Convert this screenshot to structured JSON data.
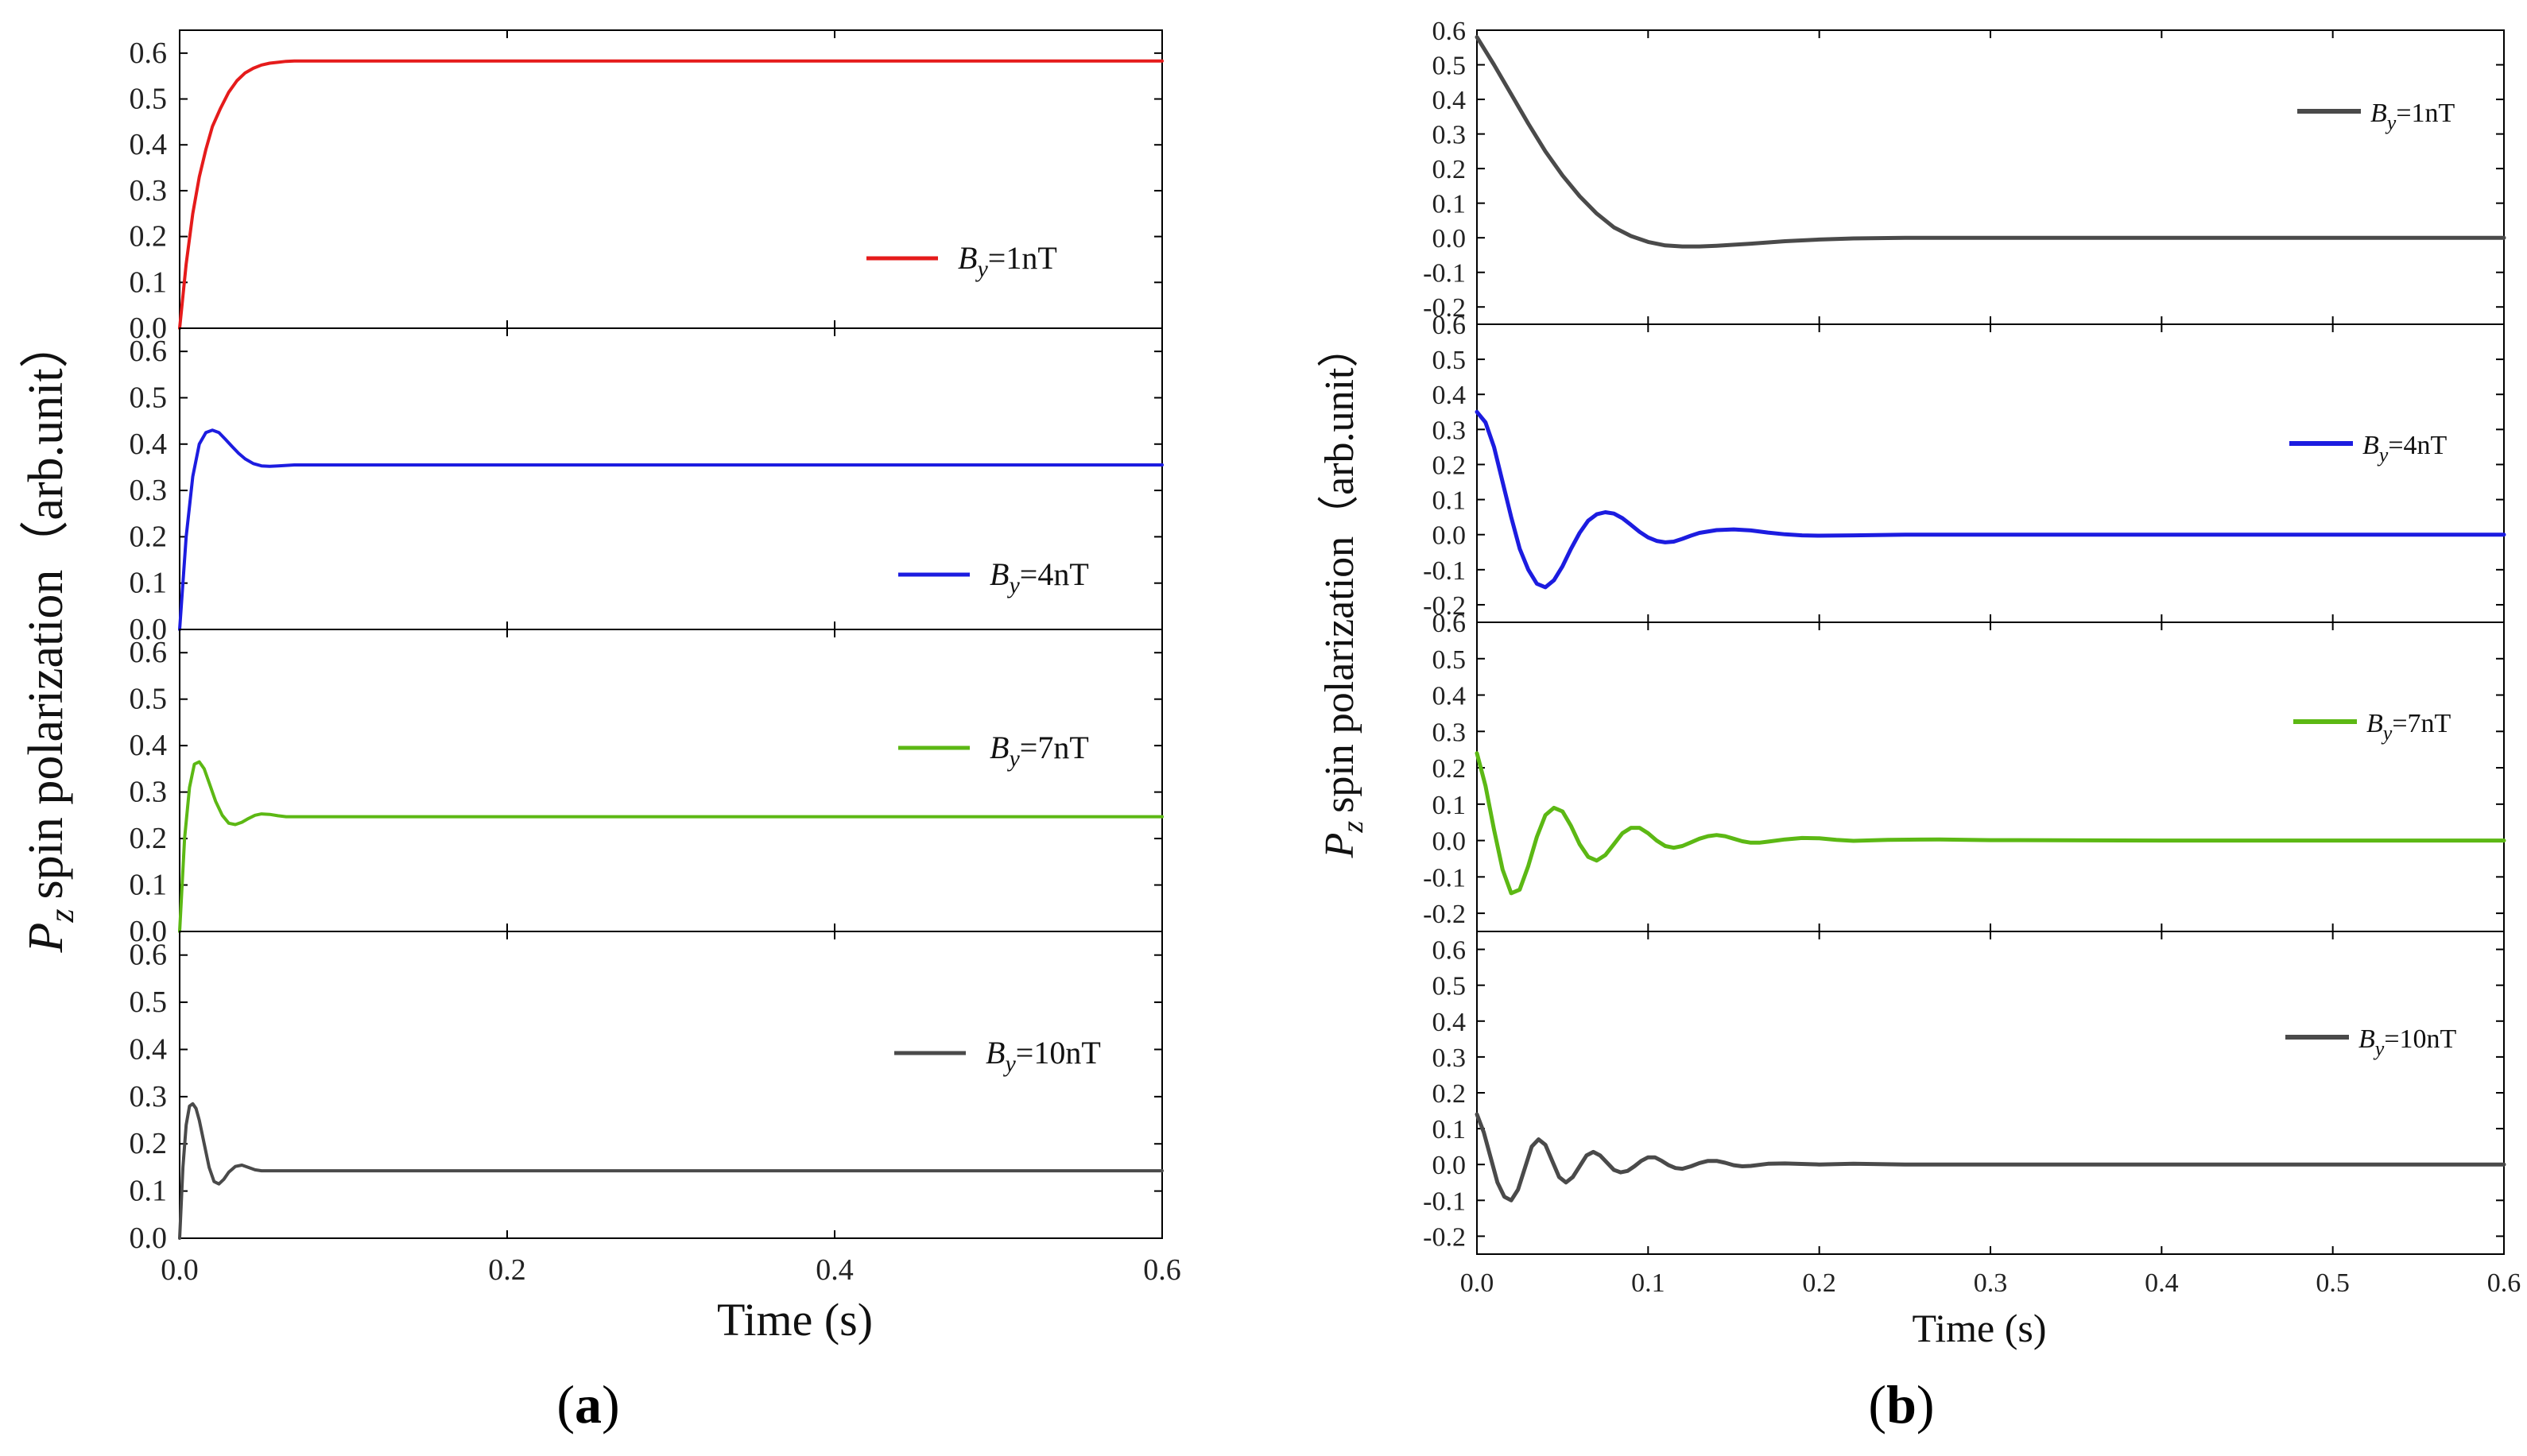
{
  "chart_data": [
    {
      "type": "line",
      "panel_label": "a",
      "xlabel": "Time (s)",
      "ylabel": "spin polarization（arb.unit）",
      "ylabel_symbol": "P",
      "ylabel_subscript": "z",
      "xlim": [
        0,
        0.6
      ],
      "xticks": [
        "0.0",
        "0.2",
        "0.4",
        "0.6"
      ],
      "subplots": [
        {
          "legend": "By=1nT",
          "legend_symbol": "B",
          "legend_sub": "y",
          "legend_tail": "=1nT",
          "color": "#e51b1b",
          "ylim": [
            0,
            0.65
          ],
          "yticks": [
            "0.0",
            "0.1",
            "0.2",
            "0.3",
            "0.4",
            "0.5",
            "0.6"
          ],
          "x": [
            0,
            0.004,
            0.008,
            0.012,
            0.016,
            0.02,
            0.025,
            0.03,
            0.035,
            0.04,
            0.045,
            0.05,
            0.055,
            0.06,
            0.065,
            0.07,
            0.08,
            0.1,
            0.2,
            0.3,
            0.4,
            0.5,
            0.6
          ],
          "y": [
            0,
            0.14,
            0.25,
            0.33,
            0.39,
            0.44,
            0.48,
            0.515,
            0.54,
            0.557,
            0.567,
            0.574,
            0.578,
            0.58,
            0.582,
            0.583,
            0.583,
            0.583,
            0.583,
            0.583,
            0.583,
            0.583,
            0.583
          ]
        },
        {
          "legend": "By=4nT",
          "legend_symbol": "B",
          "legend_sub": "y",
          "legend_tail": "=4nT",
          "color": "#1c1ce0",
          "ylim": [
            0,
            0.65
          ],
          "yticks": [
            "0.0",
            "0.1",
            "0.2",
            "0.3",
            "0.4",
            "0.5",
            "0.6"
          ],
          "x": [
            0,
            0.004,
            0.008,
            0.012,
            0.016,
            0.02,
            0.024,
            0.028,
            0.032,
            0.036,
            0.04,
            0.045,
            0.05,
            0.055,
            0.06,
            0.07,
            0.08,
            0.1,
            0.2,
            0.3,
            0.4,
            0.5,
            0.6
          ],
          "y": [
            0,
            0.2,
            0.33,
            0.4,
            0.425,
            0.43,
            0.425,
            0.41,
            0.395,
            0.38,
            0.368,
            0.358,
            0.353,
            0.352,
            0.353,
            0.355,
            0.355,
            0.355,
            0.355,
            0.355,
            0.355,
            0.355,
            0.355
          ]
        },
        {
          "legend": "By=7nT",
          "legend_symbol": "B",
          "legend_sub": "y",
          "legend_tail": "=7nT",
          "color": "#5cb814",
          "ylim": [
            0,
            0.65
          ],
          "yticks": [
            "0.0",
            "0.1",
            "0.2",
            "0.3",
            "0.4",
            "0.5",
            "0.6"
          ],
          "x": [
            0,
            0.003,
            0.006,
            0.009,
            0.012,
            0.015,
            0.018,
            0.022,
            0.026,
            0.03,
            0.034,
            0.038,
            0.042,
            0.046,
            0.05,
            0.055,
            0.06,
            0.065,
            0.07,
            0.08,
            0.1,
            0.2,
            0.3,
            0.4,
            0.5,
            0.6
          ],
          "y": [
            0,
            0.2,
            0.31,
            0.36,
            0.365,
            0.35,
            0.32,
            0.28,
            0.25,
            0.233,
            0.23,
            0.235,
            0.243,
            0.25,
            0.253,
            0.252,
            0.249,
            0.247,
            0.247,
            0.247,
            0.247,
            0.247,
            0.247,
            0.247,
            0.247,
            0.247
          ]
        },
        {
          "legend": "By=10nT",
          "legend_symbol": "B",
          "legend_sub": "y",
          "legend_tail": "=10nT",
          "color": "#4a4a4a",
          "ylim": [
            0,
            0.65
          ],
          "yticks": [
            "0.0",
            "0.1",
            "0.2",
            "0.3",
            "0.4",
            "0.5",
            "0.6"
          ],
          "x": [
            0,
            0.002,
            0.004,
            0.006,
            0.008,
            0.01,
            0.012,
            0.015,
            0.018,
            0.021,
            0.024,
            0.027,
            0.03,
            0.034,
            0.038,
            0.042,
            0.046,
            0.05,
            0.055,
            0.06,
            0.07,
            0.1,
            0.2,
            0.3,
            0.4,
            0.5,
            0.6
          ],
          "y": [
            0,
            0.15,
            0.24,
            0.28,
            0.285,
            0.275,
            0.25,
            0.2,
            0.15,
            0.12,
            0.115,
            0.125,
            0.14,
            0.152,
            0.155,
            0.15,
            0.145,
            0.143,
            0.143,
            0.143,
            0.143,
            0.143,
            0.143,
            0.143,
            0.143,
            0.143,
            0.143
          ]
        }
      ]
    },
    {
      "type": "line",
      "panel_label": "b",
      "xlabel": "Time (s)",
      "ylabel": "spin polarization（arb.unit）",
      "ylabel_symbol": "P",
      "ylabel_subscript": "z",
      "xlim": [
        0,
        0.6
      ],
      "xticks": [
        "0.0",
        "0.1",
        "0.2",
        "0.3",
        "0.4",
        "0.5",
        "0.6"
      ],
      "subplots": [
        {
          "legend": "By=1nT",
          "legend_symbol": "B",
          "legend_sub": "y",
          "legend_tail": "=1nT",
          "color": "#4a4a4a",
          "ylim": [
            -0.25,
            0.6
          ],
          "yticks": [
            "0.6",
            "0.5",
            "0.4",
            "0.3",
            "0.2",
            "0.1",
            "0.0",
            "-0.1",
            "-0.2"
          ],
          "x": [
            0,
            0.01,
            0.02,
            0.03,
            0.04,
            0.05,
            0.06,
            0.07,
            0.08,
            0.09,
            0.1,
            0.11,
            0.12,
            0.13,
            0.14,
            0.16,
            0.18,
            0.2,
            0.22,
            0.25,
            0.3,
            0.4,
            0.5,
            0.6
          ],
          "y": [
            0.58,
            0.5,
            0.415,
            0.33,
            0.25,
            0.18,
            0.12,
            0.07,
            0.03,
            0.005,
            -0.012,
            -0.022,
            -0.025,
            -0.025,
            -0.023,
            -0.017,
            -0.01,
            -0.005,
            -0.002,
            0,
            0,
            0,
            0,
            0
          ]
        },
        {
          "legend": "By=4nT",
          "legend_symbol": "B",
          "legend_sub": "y",
          "legend_tail": "=4nT",
          "color": "#1c1ce0",
          "ylim": [
            -0.25,
            0.6
          ],
          "yticks": [
            "0.6",
            "0.5",
            "0.4",
            "0.3",
            "0.2",
            "0.1",
            "0.0",
            "-0.1",
            "-0.2"
          ],
          "x": [
            0,
            0.005,
            0.01,
            0.015,
            0.02,
            0.025,
            0.03,
            0.035,
            0.04,
            0.045,
            0.05,
            0.055,
            0.06,
            0.065,
            0.07,
            0.075,
            0.08,
            0.085,
            0.09,
            0.095,
            0.1,
            0.105,
            0.11,
            0.115,
            0.12,
            0.125,
            0.13,
            0.14,
            0.15,
            0.16,
            0.17,
            0.18,
            0.19,
            0.2,
            0.22,
            0.25,
            0.3,
            0.4,
            0.5,
            0.6
          ],
          "y": [
            0.35,
            0.32,
            0.25,
            0.15,
            0.05,
            -0.04,
            -0.1,
            -0.14,
            -0.15,
            -0.13,
            -0.09,
            -0.04,
            0.005,
            0.04,
            0.058,
            0.064,
            0.06,
            0.047,
            0.028,
            0.008,
            -0.008,
            -0.018,
            -0.022,
            -0.02,
            -0.012,
            -0.003,
            0.005,
            0.013,
            0.015,
            0.012,
            0.006,
            0.001,
            -0.002,
            -0.003,
            -0.002,
            0,
            0,
            0,
            0,
            0
          ]
        },
        {
          "legend": "By=7nT",
          "legend_symbol": "B",
          "legend_sub": "y",
          "legend_tail": "=7nT",
          "color": "#5cb814",
          "ylim": [
            -0.25,
            0.6
          ],
          "yticks": [
            "0.6",
            "0.5",
            "0.4",
            "0.3",
            "0.2",
            "0.1",
            "0.0",
            "-0.1",
            "-0.2"
          ],
          "x": [
            0,
            0.005,
            0.01,
            0.015,
            0.02,
            0.025,
            0.03,
            0.035,
            0.04,
            0.045,
            0.05,
            0.055,
            0.06,
            0.065,
            0.07,
            0.075,
            0.08,
            0.085,
            0.09,
            0.095,
            0.1,
            0.105,
            0.11,
            0.115,
            0.12,
            0.125,
            0.13,
            0.135,
            0.14,
            0.145,
            0.15,
            0.155,
            0.16,
            0.165,
            0.17,
            0.18,
            0.19,
            0.2,
            0.21,
            0.22,
            0.24,
            0.27,
            0.3,
            0.4,
            0.5,
            0.6
          ],
          "y": [
            0.24,
            0.15,
            0.03,
            -0.08,
            -0.145,
            -0.135,
            -0.07,
            0.01,
            0.07,
            0.09,
            0.08,
            0.04,
            -0.01,
            -0.045,
            -0.055,
            -0.04,
            -0.01,
            0.02,
            0.035,
            0.035,
            0.02,
            0,
            -0.015,
            -0.02,
            -0.015,
            -0.005,
            0.005,
            0.012,
            0.015,
            0.012,
            0.005,
            -0.002,
            -0.006,
            -0.006,
            -0.003,
            0.003,
            0.007,
            0.006,
            0.002,
            -0.001,
            0.002,
            0.003,
            0.001,
            0,
            0,
            0
          ]
        },
        {
          "legend": "By=10nT",
          "legend_symbol": "B",
          "legend_sub": "y",
          "legend_tail": "=10nT",
          "color": "#4a4a4a",
          "ylim": [
            -0.25,
            0.65
          ],
          "yticks": [
            "0.6",
            "0.5",
            "0.4",
            "0.3",
            "0.2",
            "0.1",
            "0.0",
            "-0.1",
            "-0.2"
          ],
          "x": [
            0,
            0.004,
            0.008,
            0.012,
            0.016,
            0.02,
            0.024,
            0.028,
            0.032,
            0.036,
            0.04,
            0.044,
            0.048,
            0.052,
            0.056,
            0.06,
            0.064,
            0.068,
            0.072,
            0.076,
            0.08,
            0.084,
            0.088,
            0.092,
            0.096,
            0.1,
            0.104,
            0.108,
            0.112,
            0.116,
            0.12,
            0.125,
            0.13,
            0.135,
            0.14,
            0.145,
            0.15,
            0.155,
            0.16,
            0.17,
            0.18,
            0.2,
            0.22,
            0.25,
            0.3,
            0.4,
            0.5,
            0.6
          ],
          "y": [
            0.14,
            0.09,
            0.02,
            -0.05,
            -0.09,
            -0.1,
            -0.07,
            -0.01,
            0.05,
            0.07,
            0.055,
            0.01,
            -0.035,
            -0.05,
            -0.035,
            -0.005,
            0.025,
            0.035,
            0.025,
            0.005,
            -0.015,
            -0.022,
            -0.018,
            -0.005,
            0.01,
            0.02,
            0.02,
            0.01,
            -0.002,
            -0.01,
            -0.012,
            -0.005,
            0.004,
            0.01,
            0.01,
            0.005,
            -0.002,
            -0.005,
            -0.004,
            0.002,
            0.003,
            0,
            0.002,
            0,
            0,
            0,
            0,
            0
          ]
        }
      ]
    }
  ]
}
